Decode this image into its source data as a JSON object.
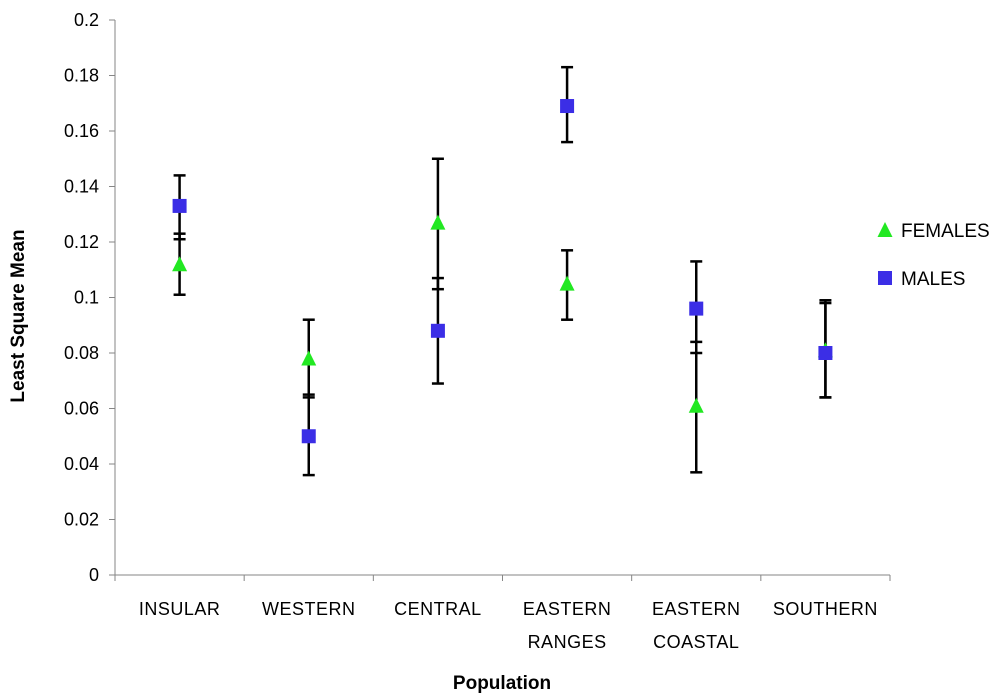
{
  "chart_data": {
    "type": "scatter",
    "title": "",
    "xlabel": "Population",
    "ylabel": "Least Square Mean",
    "ylim": [
      0,
      0.2
    ],
    "yticks": [
      "0",
      "0.02",
      "0.04",
      "0.06",
      "0.08",
      "0.1",
      "0.12",
      "0.14",
      "0.16",
      "0.18",
      "0.2"
    ],
    "categories": [
      [
        "INSULAR"
      ],
      [
        "WESTERN"
      ],
      [
        "CENTRAL"
      ],
      [
        "EASTERN",
        "RANGES"
      ],
      [
        "EASTERN",
        "COASTAL"
      ],
      [
        "SOUTHERN"
      ]
    ],
    "grid": false,
    "legend_position": "right",
    "series": [
      {
        "name": "FEMALES",
        "marker": "triangle",
        "color": "#22e822",
        "values": [
          0.112,
          0.078,
          0.127,
          0.105,
          0.061,
          0.081
        ],
        "err_low": [
          0.101,
          0.064,
          0.103,
          0.092,
          0.037,
          0.064
        ],
        "err_high": [
          0.123,
          0.092,
          0.15,
          0.117,
          0.084,
          0.098
        ]
      },
      {
        "name": "MALES",
        "marker": "square",
        "color": "#3b2ee6",
        "values": [
          0.133,
          0.05,
          0.088,
          0.169,
          0.096,
          0.08
        ],
        "err_low": [
          0.121,
          0.036,
          0.069,
          0.156,
          0.08,
          0.064
        ],
        "err_high": [
          0.144,
          0.065,
          0.107,
          0.183,
          0.113,
          0.099
        ]
      }
    ]
  }
}
